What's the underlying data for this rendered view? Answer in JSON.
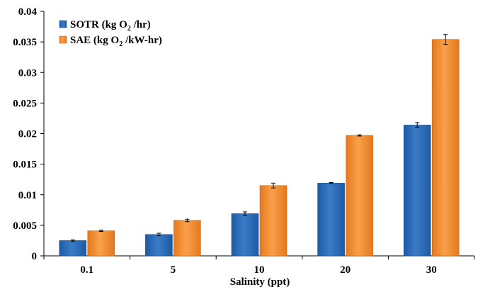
{
  "colors": {
    "series1": "#2f6db8",
    "series1_dark": "#1c4f8f",
    "series2": "#f28a2e",
    "series2_dark": "#c9671a",
    "axis": "#000000",
    "errorbar": "#000000"
  },
  "chart_data": {
    "type": "bar",
    "title": "",
    "xlabel": "Salinity (ppt)",
    "ylabel": "",
    "ylim": [
      0,
      0.04
    ],
    "yticks": [
      0,
      0.005,
      0.01,
      0.015,
      0.02,
      0.025,
      0.03,
      0.035,
      0.04
    ],
    "ytick_labels": [
      "0",
      "0.005",
      "0.01",
      "0.015",
      "0.02",
      "0.025",
      "0.03",
      "0.035",
      "0.04"
    ],
    "grid": false,
    "legend_position": "top-left",
    "categories": [
      "0.1",
      "5",
      "10",
      "20",
      "30"
    ],
    "series": [
      {
        "name": "SOTR (kg O2 /hr)",
        "legend": {
          "prefix": "SOTR (kg O",
          "sub": "2",
          "suffix": " /hr)"
        },
        "values": [
          0.0025,
          0.0035,
          0.0069,
          0.0119,
          0.0214
        ],
        "errors": [
          0.0001,
          0.0002,
          0.0003,
          0.0001,
          0.0004
        ]
      },
      {
        "name": "SAE (kg O2 /kW-hr)",
        "legend": {
          "prefix": "SAE (kg O",
          "sub": "2",
          "suffix": " /kW-hr)"
        },
        "values": [
          0.0041,
          0.0058,
          0.0115,
          0.0197,
          0.0354
        ],
        "errors": [
          0.0001,
          0.0002,
          0.0004,
          0.0001,
          0.0008
        ]
      }
    ]
  }
}
